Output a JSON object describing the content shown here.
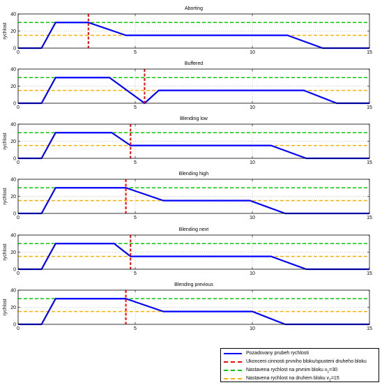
{
  "colors": {
    "profile": "#0000ff",
    "marker": "#ff0000",
    "v1": "#00cc00",
    "v2": "#ffb000",
    "grid": "#a0a0a0"
  },
  "chart_data": [
    {
      "type": "line",
      "title": "Aborting",
      "ylabel": "rychlost",
      "xlim": [
        0,
        15
      ],
      "ylim": [
        0,
        40
      ],
      "xticks": [
        0,
        5,
        10,
        15
      ],
      "yticks": [
        0,
        20,
        40
      ],
      "grid": true,
      "profile": {
        "x": [
          0,
          1,
          1.6,
          3,
          4.6,
          11.5,
          13,
          15
        ],
        "y": [
          0,
          0,
          30,
          30,
          15,
          15,
          0,
          0
        ]
      },
      "end_of_first_block": 3.0,
      "v1": 30,
      "v2": 15
    },
    {
      "type": "line",
      "title": "Buffered",
      "ylabel": "",
      "xlim": [
        0,
        15
      ],
      "ylim": [
        0,
        40
      ],
      "xticks": [
        0,
        5,
        10,
        15
      ],
      "yticks": [
        0,
        20,
        40
      ],
      "grid": true,
      "profile": {
        "x": [
          0,
          1,
          1.6,
          3.9,
          5.4,
          6,
          12.2,
          13.6,
          15
        ],
        "y": [
          0,
          0,
          30,
          30,
          0,
          15,
          15,
          0,
          0
        ]
      },
      "end_of_first_block": 5.4,
      "v1": 30,
      "v2": 15
    },
    {
      "type": "line",
      "title": "Blending low",
      "ylabel": "rychlost",
      "xlim": [
        0,
        15
      ],
      "ylim": [
        0,
        40
      ],
      "xticks": [
        0,
        5,
        10,
        15
      ],
      "yticks": [
        0,
        20,
        40
      ],
      "grid": true,
      "profile": {
        "x": [
          0,
          1,
          1.6,
          4,
          4.8,
          10.8,
          12.3,
          15
        ],
        "y": [
          0,
          0,
          30,
          30,
          15,
          15,
          0,
          0
        ]
      },
      "end_of_first_block": 4.8,
      "v1": 30,
      "v2": 15
    },
    {
      "type": "line",
      "title": "Blending high",
      "ylabel": "rychlost",
      "xlim": [
        0,
        15
      ],
      "ylim": [
        0,
        40
      ],
      "xticks": [
        0,
        5,
        10,
        15
      ],
      "yticks": [
        0,
        20,
        40
      ],
      "grid": true,
      "profile": {
        "x": [
          0,
          1,
          1.6,
          4.6,
          6.2,
          9.9,
          11.4,
          15
        ],
        "y": [
          0,
          0,
          30,
          30,
          15,
          15,
          0,
          0
        ]
      },
      "end_of_first_block": 4.6,
      "v1": 30,
      "v2": 15
    },
    {
      "type": "line",
      "title": "Blending next",
      "ylabel": "rychlost",
      "xlim": [
        0,
        15
      ],
      "ylim": [
        0,
        40
      ],
      "xticks": [
        0,
        5,
        10,
        15
      ],
      "yticks": [
        0,
        20,
        40
      ],
      "grid": true,
      "profile": {
        "x": [
          0,
          1,
          1.6,
          4.1,
          4.8,
          10.8,
          12.3,
          15
        ],
        "y": [
          0,
          0,
          30,
          30,
          15,
          15,
          0,
          0
        ]
      },
      "end_of_first_block": 4.8,
      "v1": 30,
      "v2": 15
    },
    {
      "type": "line",
      "title": "Blending previous",
      "ylabel": "rychlost",
      "xlim": [
        0,
        15
      ],
      "ylim": [
        0,
        40
      ],
      "xticks": [
        0,
        5,
        10,
        15
      ],
      "yticks": [
        0,
        20,
        40
      ],
      "grid": true,
      "profile": {
        "x": [
          0,
          1,
          1.6,
          4.6,
          6.2,
          10,
          11.4,
          15
        ],
        "y": [
          0,
          0,
          30,
          30,
          15,
          15,
          0,
          0
        ]
      },
      "end_of_first_block": 4.6,
      "v1": 30,
      "v2": 15
    }
  ],
  "legend": {
    "placement": "bottom-right",
    "entries": [
      {
        "key": "profile",
        "label": "Pozadovany prubeh rychlosti",
        "sub": "",
        "tail": ""
      },
      {
        "key": "marker",
        "label": "Ukonceni cinnosti prvniho bloku/spusteni druheho bloku",
        "sub": "",
        "tail": ""
      },
      {
        "key": "v1",
        "label": "Nastavena rychlost na prvnim bloku v",
        "sub": "1",
        "tail": "=30"
      },
      {
        "key": "v2",
        "label": "Nastavena rychlost na druhem bloku v",
        "sub": "2",
        "tail": "=15"
      }
    ]
  }
}
